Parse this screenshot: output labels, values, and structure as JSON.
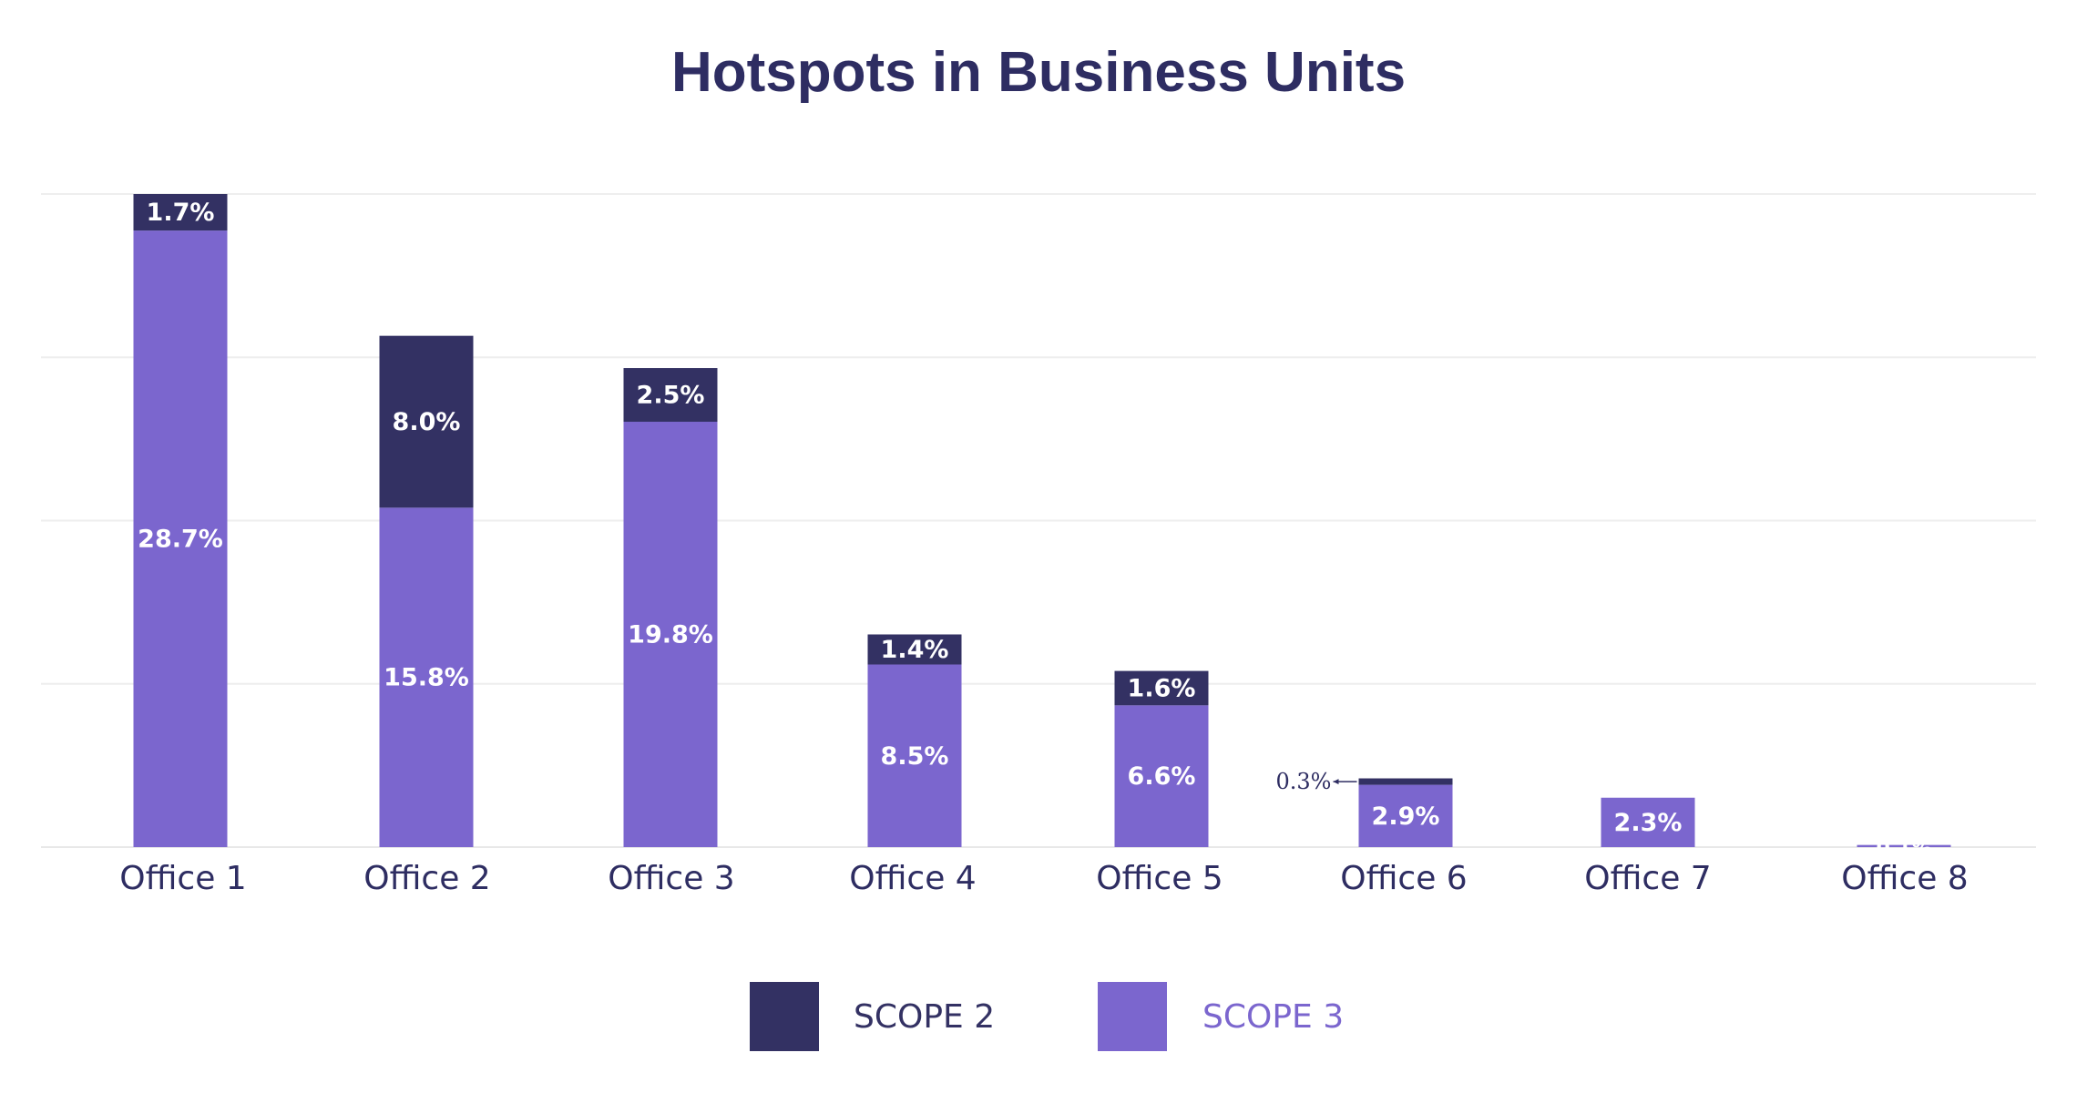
{
  "chart_data": {
    "type": "bar",
    "stacked": true,
    "title": "Hotspots in Business Units",
    "xlabel": "",
    "ylabel": "",
    "ylim": [
      0,
      30.4
    ],
    "grid": true,
    "legend_position": "bottom-center",
    "categories": [
      "Office 1",
      "Office 2",
      "Office 3",
      "Office 4",
      "Office 5",
      "Office 6",
      "Office 7",
      "Office 8"
    ],
    "series": [
      {
        "name": "SCOPE 3",
        "color": "#7b66ce",
        "values": [
          28.7,
          15.8,
          19.8,
          8.5,
          6.6,
          2.9,
          2.3,
          0.1
        ],
        "labels": [
          "28.7%",
          "15.8%",
          "19.8%",
          "8.5%",
          "6.6%",
          "2.9%",
          "2.3%",
          "0.1%"
        ]
      },
      {
        "name": "SCOPE 2",
        "color": "#333163",
        "values": [
          1.7,
          8.0,
          2.5,
          1.4,
          1.6,
          0.3,
          0,
          0
        ],
        "labels": [
          "1.7%",
          "8.0%",
          "2.5%",
          "1.4%",
          "1.6%",
          "0.3%",
          "",
          ""
        ]
      }
    ],
    "legend": [
      {
        "name": "SCOPE 2",
        "color": "#333163",
        "text_color": "#333163"
      },
      {
        "name": "SCOPE 3",
        "color": "#7b66ce",
        "text_color": "#7b66ce"
      }
    ],
    "title_color": "#2e2d62",
    "axis_text_color": "#2e2d62"
  }
}
